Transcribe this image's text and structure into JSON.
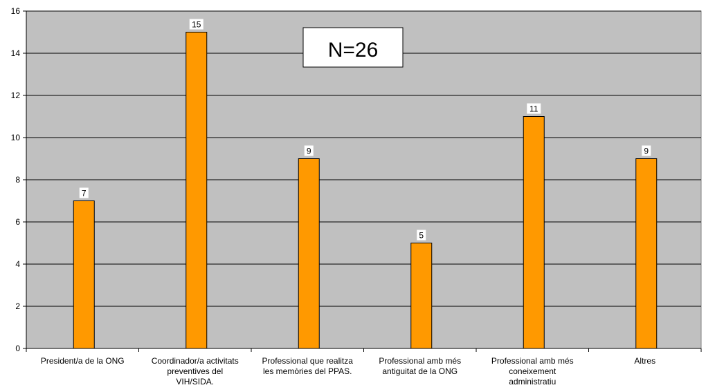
{
  "chart_data": {
    "type": "bar",
    "title": "",
    "xlabel": "",
    "ylabel": "",
    "ylim": [
      0,
      16
    ],
    "y_ticks": [
      0,
      2,
      4,
      6,
      8,
      10,
      12,
      14,
      16
    ],
    "grid": true,
    "categories": [
      [
        "President/a de la ONG"
      ],
      [
        "Coordinador/a activitats",
        "preventives del",
        "VIH/SIDA."
      ],
      [
        "Professional que realitza",
        "les memòries del PPAS."
      ],
      [
        "Professional amb més",
        "antiguitat de la ONG"
      ],
      [
        "Professional amb més",
        "coneixement",
        "administratiu"
      ],
      [
        "Altres"
      ]
    ],
    "values": [
      7,
      15,
      9,
      5,
      11,
      9
    ],
    "annotation": "N=26",
    "colors": {
      "plot_background": "#c0c0c0",
      "bar": "#ff9900",
      "bar_stroke": "#000000"
    }
  }
}
